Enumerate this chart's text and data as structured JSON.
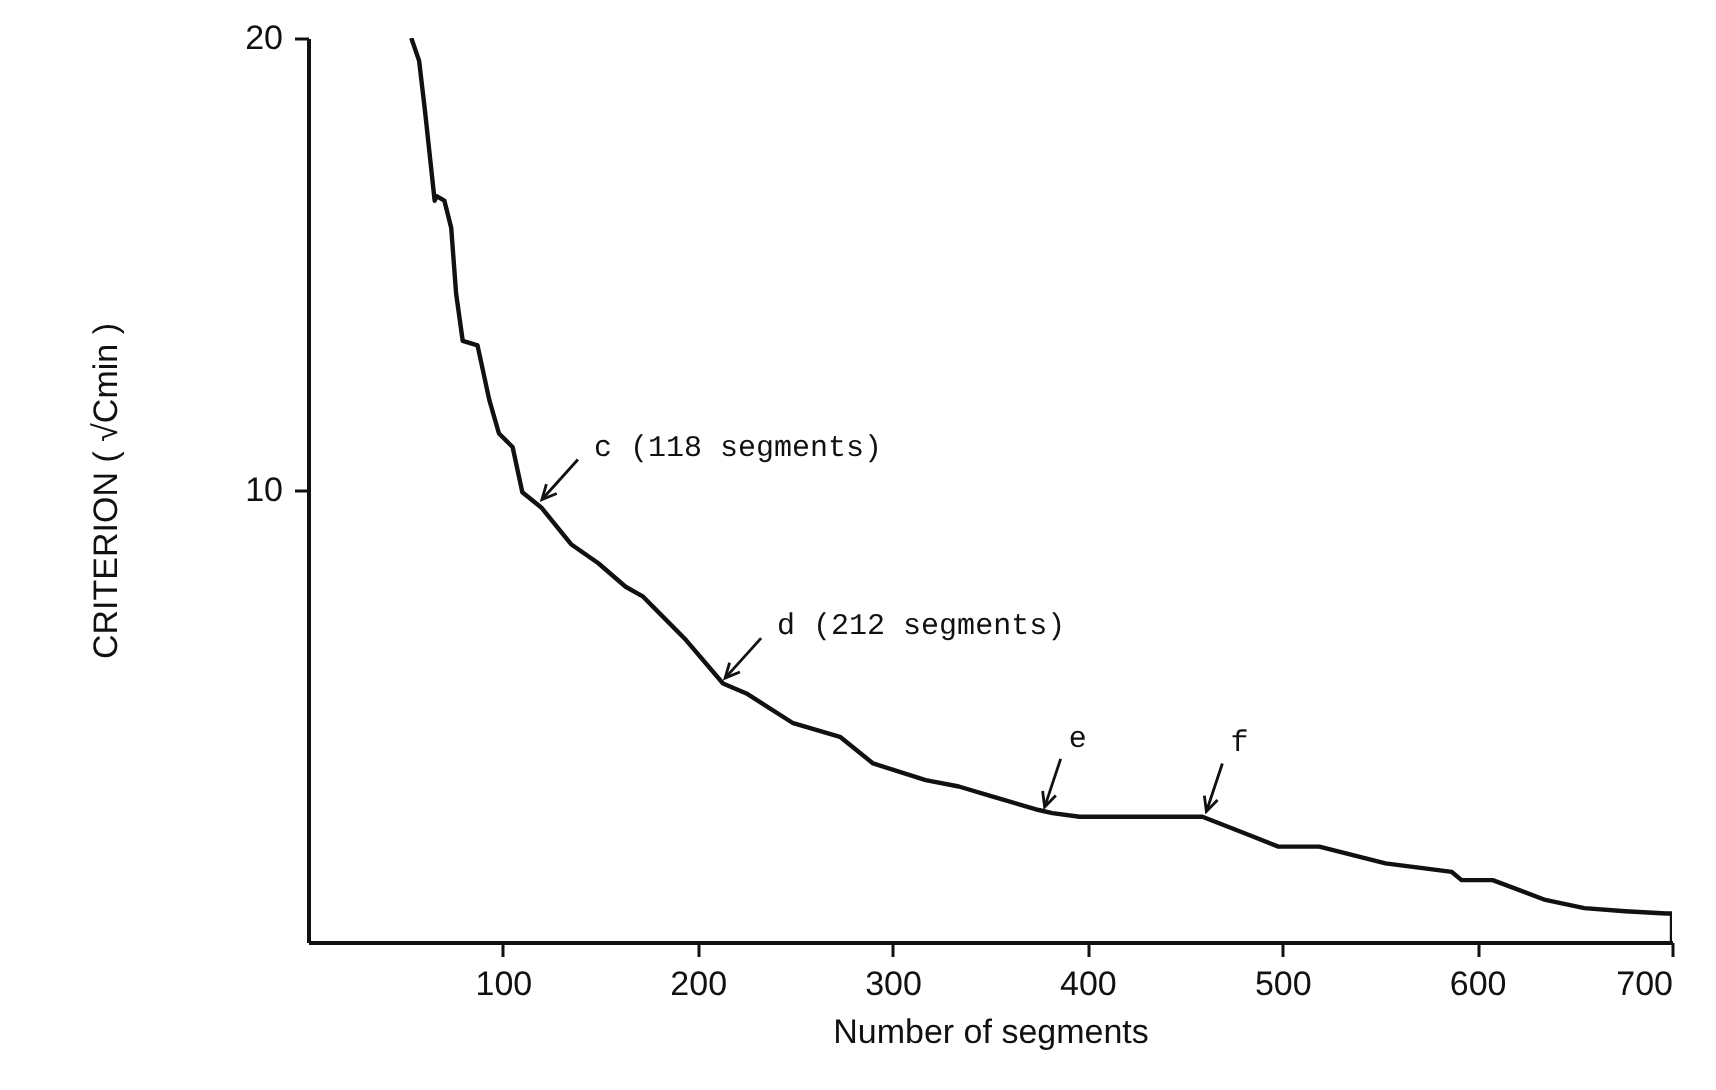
{
  "chart_data": {
    "type": "line",
    "xlabel": "Number of segments",
    "ylabel": "CRITERION  ( √Cmin )",
    "xlim": [
      0,
      700
    ],
    "ylim": [
      0,
      20
    ],
    "xticks": [
      100,
      200,
      300,
      400,
      500,
      600,
      700
    ],
    "yticks": [
      10,
      20
    ],
    "line_style": "solid",
    "marker": "none",
    "series": [
      {
        "color": "#111111",
        "x": [
          53,
          57,
          60,
          65,
          66,
          70,
          73.5,
          76,
          79.4,
          87,
          93,
          98,
          105,
          110,
          120,
          135,
          149,
          163,
          172,
          177,
          194,
          213,
          225,
          249,
          273,
          290,
          317,
          334,
          351,
          375,
          382,
          396,
          459,
          481,
          498,
          519,
          553,
          587,
          592,
          608,
          635,
          655,
          676,
          697,
          700,
          700
        ],
        "values": [
          20,
          19.5,
          18.4,
          16.4,
          16.5,
          16.4,
          15.8,
          14.35,
          13.3,
          13.2,
          12,
          11.25,
          10.95,
          9.95,
          9.6,
          8.8,
          8.38,
          7.86,
          7.64,
          7.42,
          6.68,
          5.72,
          5.5,
          4.84,
          4.54,
          3.95,
          3.58,
          3.44,
          3.22,
          2.92,
          2.85,
          2.77,
          2.77,
          2.4,
          2.11,
          2.11,
          1.74,
          1.55,
          1.37,
          1.37,
          0.93,
          0.75,
          0.68,
          0.63,
          0.63,
          0
        ]
      }
    ],
    "annotations": [
      {
        "text": "c (118 segments)",
        "x": 118,
        "y": 9.7
      },
      {
        "text": "d (212 segments)",
        "x": 212,
        "y": 5.75
      },
      {
        "text": "e",
        "x": 376,
        "y": 2.9
      },
      {
        "text": "f",
        "x": 459,
        "y": 2.8
      }
    ]
  }
}
